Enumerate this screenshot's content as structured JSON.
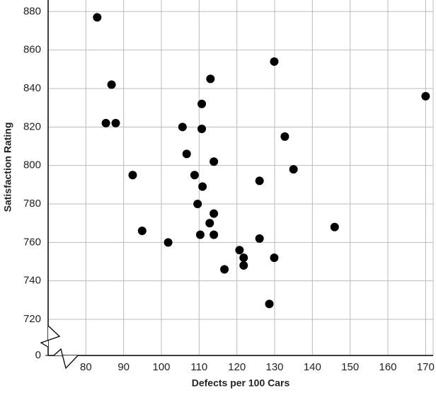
{
  "chart_data": {
    "type": "scatter",
    "x_label": "Defects per 100 Cars",
    "y_label": "Satisfaction Rating",
    "xlim": [
      70,
      172
    ],
    "ylim": [
      0,
      886
    ],
    "xticks": [
      80,
      90,
      100,
      110,
      120,
      130,
      140,
      150,
      160,
      170
    ],
    "yticks": [
      0,
      720,
      740,
      760,
      780,
      800,
      820,
      840,
      860,
      880
    ],
    "y_axis_break": true,
    "x_axis_break": true,
    "grid": true,
    "color": "#000000",
    "x": [
      83.0,
      86.8,
      85.3,
      87.9,
      92.4,
      94.9,
      101.8,
      105.6,
      106.7,
      110.7,
      110.7,
      113.0,
      108.8,
      113.9,
      110.9,
      109.6,
      113.9,
      112.8,
      110.3,
      113.9,
      116.7,
      120.7,
      121.8,
      121.8,
      126.0,
      126.0,
      128.6,
      129.9,
      129.9,
      132.7,
      135.0,
      145.9,
      170.0
    ],
    "values": [
      877,
      842,
      822,
      822,
      795,
      766,
      760,
      820,
      806,
      832,
      819,
      845,
      795,
      802,
      789,
      780,
      775,
      770,
      764,
      764,
      746,
      756,
      752,
      748,
      792,
      762,
      728,
      854,
      752,
      815,
      798,
      768,
      836
    ]
  }
}
